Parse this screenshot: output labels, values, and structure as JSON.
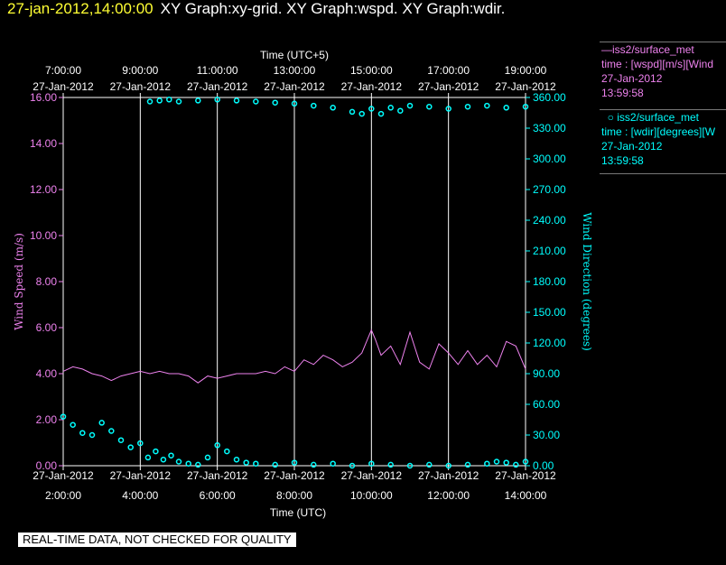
{
  "header": {
    "timestamp": "27-jan-2012,14:00:00",
    "graphs": "XY Graph:xy-grid.  XY Graph:wspd.  XY Graph:wdir."
  },
  "legend": {
    "entry1": {
      "line1": "iss2/surface_met",
      "line2": "time : [wspd][m/s][Wind",
      "line3": "27-Jan-2012",
      "line4": "13:59:58"
    },
    "entry2": {
      "line1": "iss2/surface_met",
      "line2": "time : [wdir][degrees][W",
      "line3": "27-Jan-2012",
      "line4": "13:59:58"
    }
  },
  "note": "REAL-TIME DATA, NOT CHECKED FOR QUALITY",
  "chart_data": {
    "type": "line",
    "top_axis": {
      "title": "Time (UTC+5)",
      "times": [
        "7:00:00",
        "9:00:00",
        "11:00:00",
        "13:00:00",
        "15:00:00",
        "17:00:00",
        "19:00:00"
      ],
      "dates": [
        "27-Jan-2012",
        "27-Jan-2012",
        "27-Jan-2012",
        "27-Jan-2012",
        "27-Jan-2012",
        "27-Jan-2012",
        "27-Jan-2012"
      ]
    },
    "bottom_axis": {
      "title": "Time (UTC)",
      "times": [
        "2:00:00",
        "4:00:00",
        "6:00:00",
        "8:00:00",
        "10:00:00",
        "12:00:00",
        "14:00:00"
      ],
      "dates": [
        "27-Jan-2012",
        "27-Jan-2012",
        "27-Jan-2012",
        "27-Jan-2012",
        "27-Jan-2012",
        "27-Jan-2012",
        "27-Jan-2012"
      ]
    },
    "x_hours_utc": [
      2,
      14
    ],
    "left_axis": {
      "label": "Wind Speed (m/s)",
      "range": [
        0,
        16
      ],
      "ticks": [
        "0.00",
        "2.00",
        "4.00",
        "6.00",
        "8.00",
        "10.00",
        "12.00",
        "14.00",
        "16.00"
      ],
      "color": "#ee82ee"
    },
    "right_axis": {
      "label": "Wind Direction (degrees)",
      "range": [
        0,
        360
      ],
      "ticks": [
        "0.00",
        "30.00",
        "60.00",
        "90.00",
        "120.00",
        "150.00",
        "180.00",
        "210.00",
        "240.00",
        "270.00",
        "300.00",
        "330.00",
        "360.00"
      ],
      "color": "#00ffff"
    },
    "grid": "vertical",
    "series": [
      {
        "name": "iss2/surface_met",
        "axis": "left",
        "style": "line",
        "color": "#ee82ee",
        "x": [
          2.0,
          2.25,
          2.5,
          2.75,
          3.0,
          3.25,
          3.5,
          3.75,
          4.0,
          4.25,
          4.5,
          4.75,
          5.0,
          5.25,
          5.5,
          5.75,
          6.0,
          6.25,
          6.5,
          6.75,
          7.0,
          7.25,
          7.5,
          7.75,
          8.0,
          8.25,
          8.5,
          8.75,
          9.0,
          9.25,
          9.5,
          9.75,
          10.0,
          10.1,
          10.25,
          10.5,
          10.75,
          11.0,
          11.25,
          11.5,
          11.75,
          12.0,
          12.25,
          12.5,
          12.75,
          13.0,
          13.25,
          13.5,
          13.75,
          14.0
        ],
        "y": [
          4.1,
          4.3,
          4.2,
          4.0,
          3.9,
          3.7,
          3.9,
          4.0,
          4.1,
          4.0,
          4.1,
          4.0,
          4.0,
          3.9,
          3.6,
          3.9,
          3.8,
          3.9,
          4.0,
          4.0,
          4.0,
          4.1,
          4.0,
          4.3,
          4.1,
          4.6,
          4.4,
          4.8,
          4.6,
          4.3,
          4.5,
          4.9,
          5.9,
          5.5,
          4.8,
          5.2,
          4.4,
          5.8,
          4.5,
          4.2,
          5.3,
          4.9,
          4.4,
          5.0,
          4.4,
          4.8,
          4.3,
          5.4,
          5.2,
          4.2
        ]
      },
      {
        "name": "iss2/surface_met",
        "axis": "right",
        "style": "markers",
        "color": "#00ffff",
        "x": [
          2.0,
          2.25,
          2.5,
          2.75,
          3.0,
          3.25,
          3.5,
          3.75,
          4.0,
          4.2,
          4.4,
          4.6,
          4.8,
          5.0,
          5.25,
          5.5,
          5.75,
          6.0,
          6.25,
          6.5,
          6.75,
          7.0,
          7.5,
          8.0,
          8.5,
          9.0,
          9.5,
          10.0,
          10.5,
          11.0,
          11.5,
          12.0,
          12.5,
          13.0,
          13.25,
          13.5,
          13.75,
          14.0
        ],
        "y": [
          48,
          40,
          32,
          30,
          42,
          34,
          25,
          18,
          22,
          8,
          14,
          6,
          10,
          4,
          2,
          1,
          8,
          20,
          14,
          6,
          3,
          2,
          1,
          3,
          1,
          2,
          0,
          2,
          1,
          0,
          1,
          0,
          1,
          2,
          4,
          3,
          1,
          4
        ]
      },
      {
        "name": "iss2/surface_met",
        "axis": "right",
        "style": "markers",
        "color": "#00ffff",
        "x": [
          4.25,
          4.5,
          4.75,
          5.0,
          5.5,
          6.0,
          6.5,
          7.0,
          7.5,
          8.0,
          8.5,
          9.0,
          9.5,
          9.75,
          10.0,
          10.25,
          10.5,
          10.75,
          11.0,
          11.5,
          12.0,
          12.5,
          13.0,
          13.5,
          14.0
        ],
        "y": [
          356,
          357,
          358,
          356,
          357,
          358,
          357,
          356,
          355,
          354,
          352,
          350,
          346,
          344,
          349,
          344,
          350,
          347,
          352,
          351,
          349,
          351,
          352,
          350,
          351
        ]
      }
    ]
  }
}
